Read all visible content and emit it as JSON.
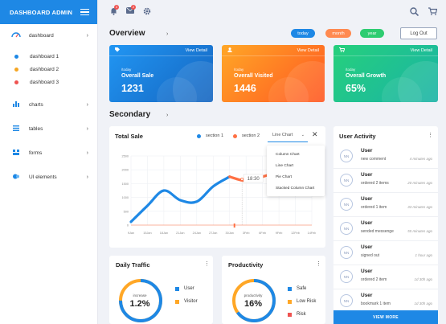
{
  "brand": {
    "title": "DASHBOARD ADMIN"
  },
  "sidebar": {
    "dashboard": "dashboard",
    "sub_items": [
      {
        "label": "dashboard 1",
        "color": "#1e88e5"
      },
      {
        "label": "dashboard 2",
        "color": "#f5a623"
      },
      {
        "label": "dashboard 3",
        "color": "#ef5350"
      }
    ],
    "items": [
      {
        "label": "charts",
        "icon": "bar-chart-icon"
      },
      {
        "label": "tables",
        "icon": "table-icon"
      },
      {
        "label": "forms",
        "icon": "forms-icon"
      },
      {
        "label": "UI elements",
        "icon": "ui-elements-icon"
      }
    ]
  },
  "header": {
    "notif_count": "3",
    "mail_count": "2"
  },
  "overview": {
    "title": "Overview",
    "ranges": [
      {
        "label": "today",
        "color": "#1e88e5"
      },
      {
        "label": "month",
        "color": "#ff8a50"
      },
      {
        "label": "year",
        "color": "#2ecc71"
      }
    ],
    "logout": "Log Out"
  },
  "cards": [
    {
      "view": "View Detail",
      "today": "/today",
      "label": "Overall Sale",
      "value": "1231",
      "from": "#2196f3",
      "to": "#1565c0"
    },
    {
      "view": "View Detail",
      "today": "/today",
      "label": "Overall Visited",
      "value": "1446",
      "from": "#ffa726",
      "to": "#ff5722"
    },
    {
      "view": "View Detail",
      "today": "/today",
      "label": "Overall Growth",
      "value": "65%",
      "from": "#26d07c",
      "to": "#1ab3a6"
    }
  ],
  "secondary": {
    "title": "Secondary"
  },
  "total_sale": {
    "title": "Total Sale",
    "legend": [
      {
        "label": "section 1",
        "color": "#1e88e5"
      },
      {
        "label": "section 2",
        "color": "#ff7043"
      }
    ],
    "selected_chart": "Line Chart",
    "options": [
      "Column Chart",
      "Line Chart",
      "Pie Chart",
      "Stacked Column Chart"
    ],
    "tooltip": "18:30"
  },
  "chart_data": {
    "type": "line",
    "categories": [
      "9Jan",
      "15Jan",
      "18Jan",
      "21Jan",
      "24Jan",
      "27Jan",
      "30Jan",
      "3Feb",
      "6Feb",
      "9Feb",
      "12Feb",
      "14Feb"
    ],
    "y_ticks": [
      "0",
      "500",
      "1000",
      "1500",
      "2000",
      "2500"
    ],
    "ylim": [
      0,
      2500
    ],
    "series": [
      {
        "color": "#1e88e5",
        "values": [
          120,
          700,
          1250,
          900,
          850,
          1400,
          1750,
          null,
          null,
          null,
          null,
          null
        ]
      },
      {
        "color": "#ff7043",
        "values": [
          null,
          null,
          null,
          null,
          null,
          null,
          1750,
          1600,
          1750,
          1950,
          2250,
          1650
        ]
      }
    ]
  },
  "activity": {
    "title": "User Activity",
    "rows": [
      {
        "avatar": "NN",
        "user": "User",
        "action": "new comment",
        "time": "4 minutes ago"
      },
      {
        "avatar": "NN",
        "user": "User",
        "action": "ordered 2 items",
        "time": "20 minutes ago"
      },
      {
        "avatar": "NN",
        "user": "User",
        "action": "ordered 1 item",
        "time": "33 minutes ago"
      },
      {
        "avatar": "NN",
        "user": "User",
        "action": "sended messenge",
        "time": "55 minutes ago"
      },
      {
        "avatar": "NN",
        "user": "User",
        "action": "signed out",
        "time": "1 hour ago"
      },
      {
        "avatar": "NN",
        "user": "User",
        "action": "ordered 2 item",
        "time": "1d 30h ago"
      },
      {
        "avatar": "NN",
        "user": "User",
        "action": "bookmark 1 item",
        "time": "1d 30h ago"
      }
    ],
    "view_more": "VIEW MORE"
  },
  "traffic": {
    "title": "Daily Traffic",
    "ring_label": "increase",
    "ring_value": "1.2%",
    "ring_fraction": 0.75,
    "legend": [
      {
        "label": "User",
        "color": "#1e88e5"
      },
      {
        "label": "Visitor",
        "color": "#ffa726"
      }
    ]
  },
  "productivity": {
    "title": "Productivity",
    "ring_label": "productivity",
    "ring_value": "16%",
    "ring_fraction": 0.65,
    "legend": [
      {
        "label": "Safe",
        "color": "#1e88e5"
      },
      {
        "label": "Low Risk",
        "color": "#ffa726"
      },
      {
        "label": "Risk",
        "color": "#ef5350"
      }
    ]
  }
}
